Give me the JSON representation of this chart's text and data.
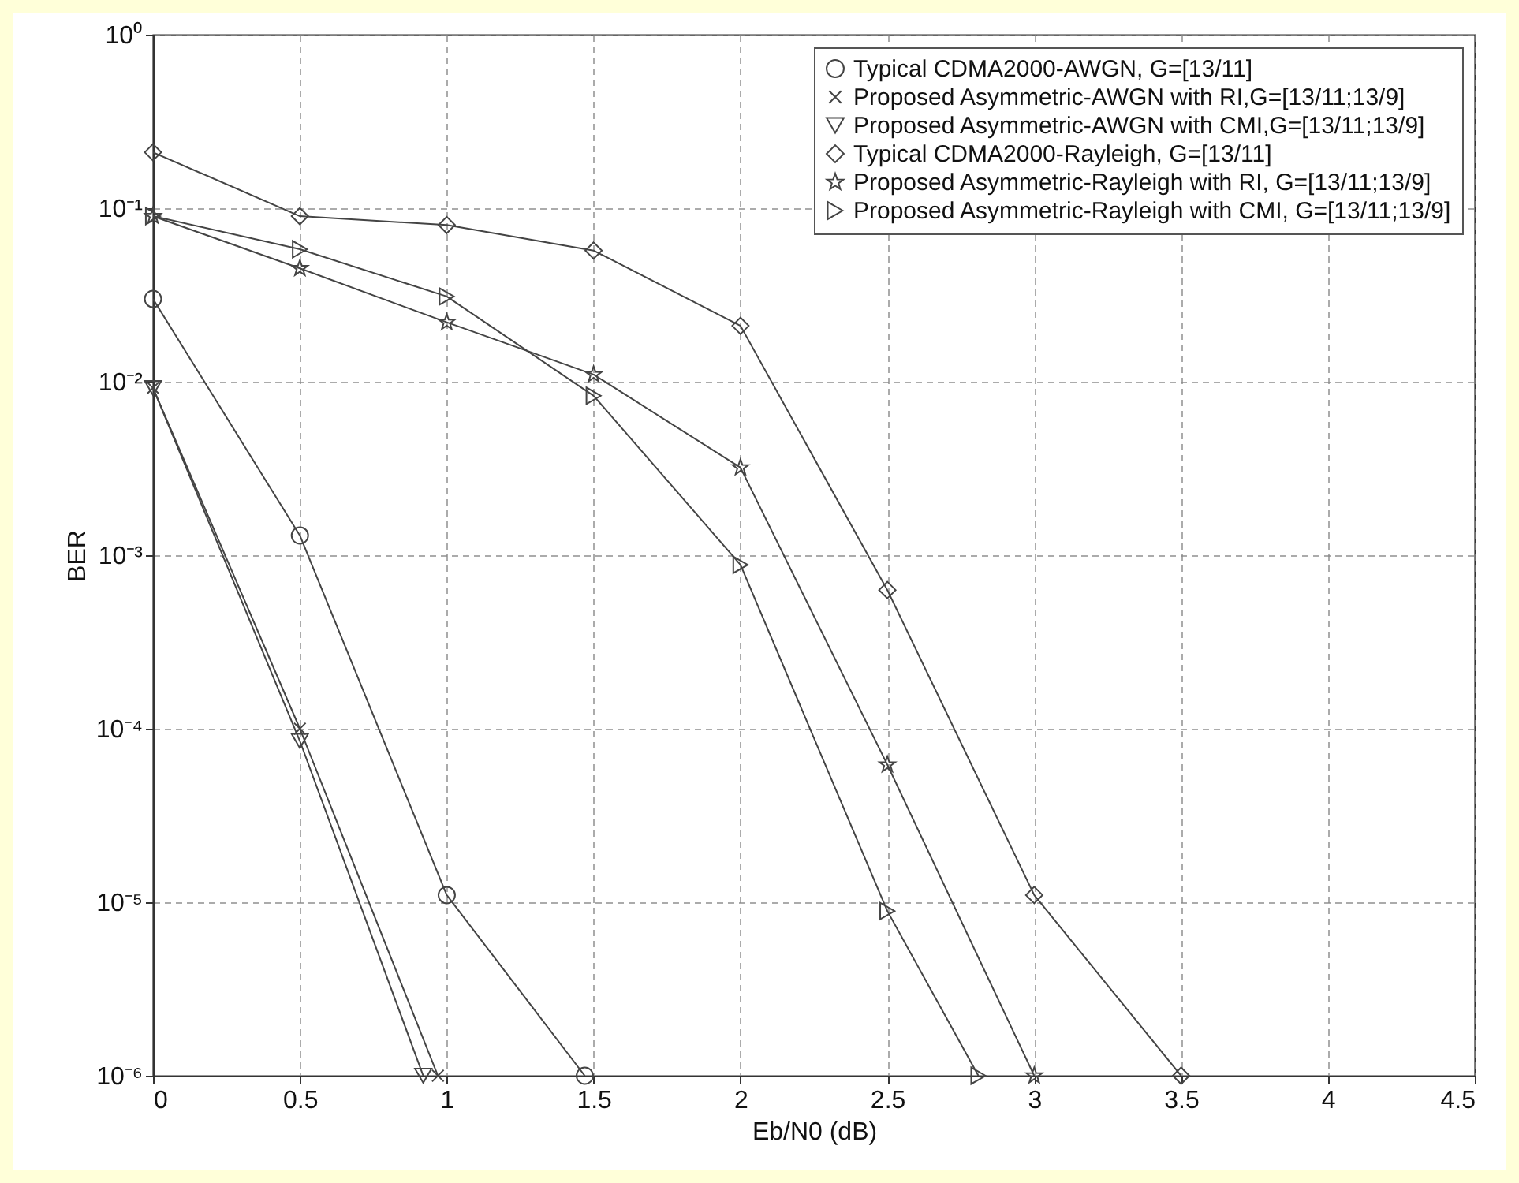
{
  "chart_data": {
    "type": "line",
    "xlabel": "Eb/N0 (dB)",
    "ylabel": "BER",
    "log": "y",
    "grid": true,
    "legend": "top right",
    "line_style": "solid",
    "xlim": [
      0,
      4.5
    ],
    "xticks": [
      0,
      0.5,
      1,
      1.5,
      2,
      2.5,
      3,
      3.5,
      4,
      4.5
    ],
    "ylim": [
      1e-06,
      1
    ],
    "yticks": [
      {
        "value": 1e-06,
        "label": "10⁻⁶"
      },
      {
        "value": 1e-05,
        "label": "10⁻⁵"
      },
      {
        "value": 0.0001,
        "label": "10⁻⁴"
      },
      {
        "value": 0.001,
        "label": "10⁻³"
      },
      {
        "value": 0.01,
        "label": "10⁻²"
      },
      {
        "value": 0.1,
        "label": "10⁻¹"
      },
      {
        "value": 1,
        "label": "10⁰"
      }
    ],
    "series": [
      {
        "name": "Typical CDMA2000-AWGN, G=[13/11]",
        "color": "#444444",
        "marker": "circle",
        "x": [
          0,
          0.5,
          1,
          1.47
        ],
        "values": [
          0.03,
          0.0013,
          1.1e-05,
          1e-06
        ]
      },
      {
        "name": "Proposed Asymmetric-AWGN with RI,G=[13/11;13/9]",
        "color": "#444444",
        "marker": "cross",
        "x": [
          0,
          0.5,
          0.97
        ],
        "values": [
          0.0092,
          0.0001,
          1e-06
        ]
      },
      {
        "name": "Proposed Asymmetric-AWGN with CMI,G=[13/11;13/9]",
        "color": "#444444",
        "marker": "triangle",
        "x": [
          0,
          0.5,
          0.92
        ],
        "values": [
          0.0092,
          8.5e-05,
          1e-06
        ]
      },
      {
        "name": "Typical CDMA2000-Rayleigh, G=[13/11]",
        "color": "#444444",
        "marker": "diamond",
        "x": [
          0,
          0.5,
          1,
          1.5,
          2,
          2.5,
          3,
          3.5
        ],
        "values": [
          0.21,
          0.09,
          0.08,
          0.057,
          0.021,
          0.00063,
          1.1e-05,
          1e-06
        ]
      },
      {
        "name": "Proposed Asymmetric-Rayleigh with RI, G=[13/11;13/9]",
        "color": "#444444",
        "marker": "star",
        "x": [
          0,
          0.5,
          1,
          1.5,
          2,
          2.5,
          3
        ],
        "values": [
          0.09,
          0.045,
          0.022,
          0.011,
          0.0032,
          6.2e-05,
          1e-06
        ]
      },
      {
        "name": "Proposed Asymmetric-Rayleigh with CMI, G=[13/11;13/9]",
        "color": "#444444",
        "marker": "triangle-right",
        "x": [
          0,
          0.5,
          1,
          1.5,
          2,
          2.5,
          2.81
        ],
        "values": [
          0.09,
          0.058,
          0.031,
          0.0083,
          0.00088,
          8.9e-06,
          1e-06
        ]
      }
    ]
  }
}
